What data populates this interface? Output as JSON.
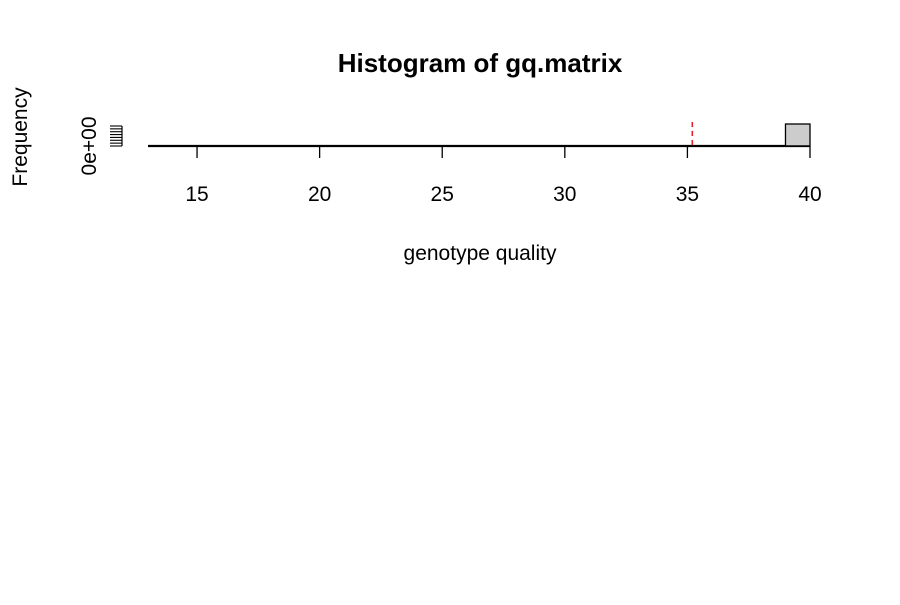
{
  "chart_data": {
    "type": "bar",
    "title": "Histogram of gq.matrix",
    "xlabel": "genotype quality",
    "ylabel": "Frequency",
    "xlim": [
      13,
      40
    ],
    "x_ticks": [
      15,
      20,
      25,
      30,
      35,
      40
    ],
    "y_tick_labels": [
      "0e+00"
    ],
    "bins": [
      {
        "start": 39,
        "end": 40,
        "relative_height": 1.0
      }
    ],
    "reference_line": {
      "x": 35.2,
      "color": "#e8202a",
      "style": "dashed"
    },
    "colors": {
      "bar_fill": "#cccccc",
      "bar_stroke": "#000000",
      "axis": "#000000"
    }
  }
}
